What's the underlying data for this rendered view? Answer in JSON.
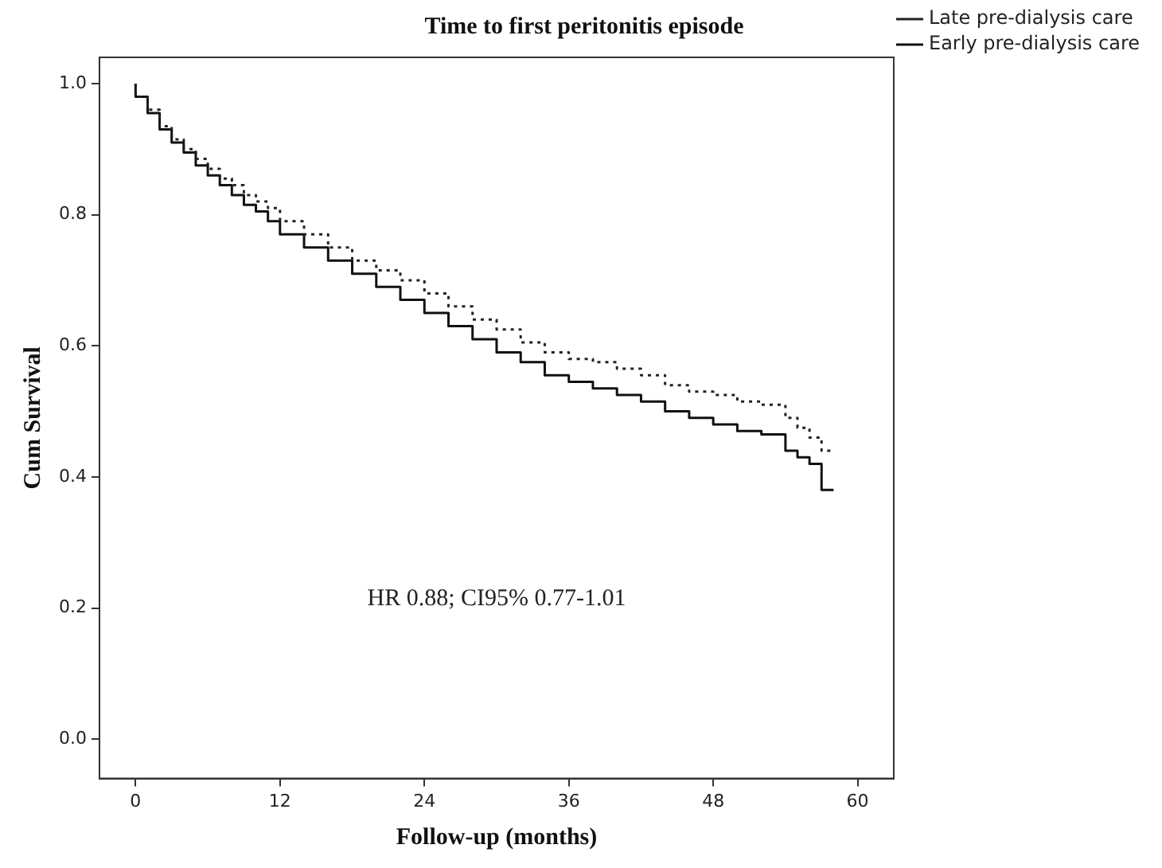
{
  "chart_data": {
    "type": "step",
    "title": "Time to first peritonitis episode",
    "xlabel": "Follow-up (months)",
    "ylabel": "Cum Survival",
    "xlim": [
      -3,
      63
    ],
    "xticks": [
      0,
      12,
      24,
      36,
      48,
      60
    ],
    "ylim": [
      -0.06,
      1.04
    ],
    "yticks": [
      {
        "value": 0,
        "label": "0.0"
      },
      {
        "value": 0.2,
        "label": "0.2"
      },
      {
        "value": 0.4,
        "label": "0.4"
      },
      {
        "value": 0.6,
        "label": "0.6"
      },
      {
        "value": 0.8,
        "label": "0.8"
      },
      {
        "value": 1,
        "label": "1.0"
      }
    ],
    "grid": false,
    "legend": "top right",
    "marker": "none",
    "annotations": [
      "HR 0.88; CI95% 0.77-1.01"
    ],
    "series": [
      {
        "name": "Late pre-dialysis care",
        "color": "#222222",
        "line_style": "dotted",
        "x": [
          0,
          1,
          2,
          3,
          4,
          5,
          6,
          7,
          8,
          9,
          10,
          11,
          12,
          14,
          16,
          18,
          20,
          22,
          24,
          26,
          28,
          30,
          32,
          34,
          36,
          38,
          40,
          42,
          44,
          46,
          48,
          50,
          52,
          54,
          55,
          56,
          57,
          58
        ],
        "values": [
          1,
          0.98,
          0.96,
          0.935,
          0.915,
          0.9,
          0.885,
          0.87,
          0.855,
          0.845,
          0.83,
          0.82,
          0.81,
          0.79,
          0.77,
          0.75,
          0.73,
          0.715,
          0.7,
          0.68,
          0.66,
          0.64,
          0.625,
          0.605,
          0.59,
          0.58,
          0.575,
          0.565,
          0.555,
          0.54,
          0.53,
          0.525,
          0.515,
          0.51,
          0.49,
          0.475,
          0.46,
          0.44
        ]
      },
      {
        "name": "Early pre-dialysis care",
        "color": "#111111",
        "line_style": "solid",
        "x": [
          0,
          1,
          2,
          3,
          4,
          5,
          6,
          7,
          8,
          9,
          10,
          11,
          12,
          14,
          16,
          18,
          20,
          22,
          24,
          26,
          28,
          30,
          32,
          34,
          36,
          38,
          40,
          42,
          44,
          46,
          48,
          50,
          52,
          54,
          55,
          56,
          57,
          58
        ],
        "values": [
          1,
          0.98,
          0.955,
          0.93,
          0.91,
          0.895,
          0.875,
          0.86,
          0.845,
          0.83,
          0.815,
          0.805,
          0.79,
          0.77,
          0.75,
          0.73,
          0.71,
          0.69,
          0.67,
          0.65,
          0.63,
          0.61,
          0.59,
          0.575,
          0.555,
          0.545,
          0.535,
          0.525,
          0.515,
          0.5,
          0.49,
          0.48,
          0.47,
          0.465,
          0.44,
          0.43,
          0.42,
          0.38
        ]
      }
    ]
  }
}
